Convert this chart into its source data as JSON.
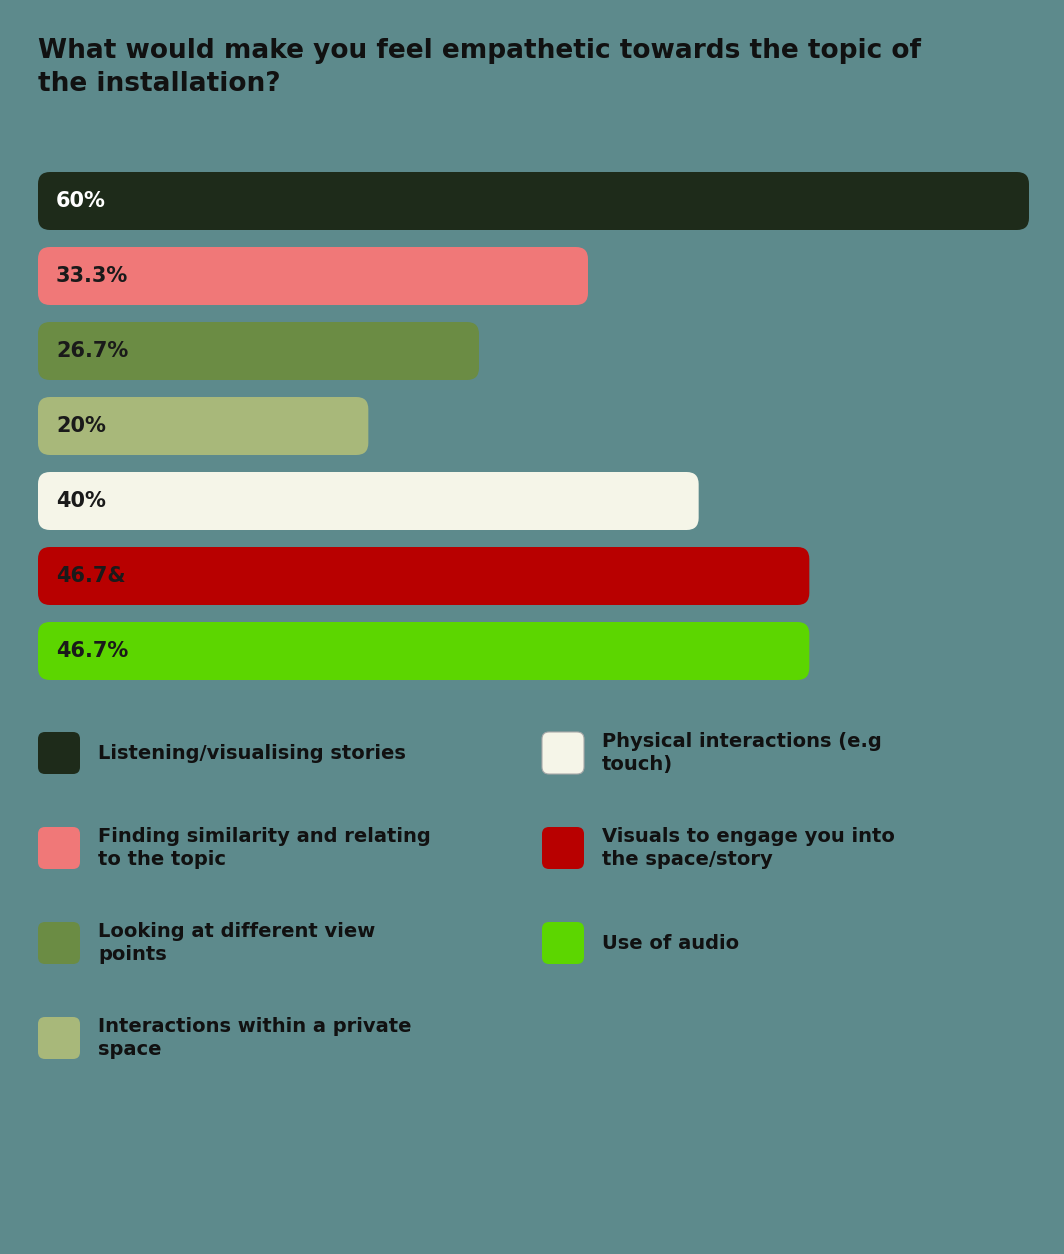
{
  "title": "What would make you feel empathetic towards the topic of\nthe installation?",
  "background_color": "#5d8a8c",
  "bars": [
    {
      "label": "60%",
      "value": 60,
      "color": "#1e2b1a",
      "text_color": "#ffffff"
    },
    {
      "label": "33.3%",
      "value": 33.3,
      "color": "#f07878",
      "text_color": "#1a1a1a"
    },
    {
      "label": "26.7%",
      "value": 26.7,
      "color": "#6b8c44",
      "text_color": "#1a1a1a"
    },
    {
      "label": "20%",
      "value": 20,
      "color": "#a8b87a",
      "text_color": "#1a1a1a"
    },
    {
      "label": "40%",
      "value": 40,
      "color": "#f5f5e8",
      "text_color": "#1a1a1a"
    },
    {
      "label": "46.7&",
      "value": 46.7,
      "color": "#b80000",
      "text_color": "#1a1a1a"
    },
    {
      "label": "46.7%",
      "value": 46.7,
      "color": "#5cd600",
      "text_color": "#1a1a1a"
    }
  ],
  "max_value": 60,
  "legend_items_left": [
    {
      "color": "#1e2b1a",
      "label": "Listening/visualising stories",
      "border": false
    },
    {
      "color": "#f07878",
      "label": "Finding similarity and relating\nto the topic",
      "border": false
    },
    {
      "color": "#6b8c44",
      "label": "Looking at different view\npoints",
      "border": false
    },
    {
      "color": "#a8b87a",
      "label": "Interactions within a private\nspace",
      "border": false
    }
  ],
  "legend_items_right": [
    {
      "color": "#f5f5e8",
      "label": "Physical interactions (e.g\ntouch)",
      "border": true
    },
    {
      "color": "#b80000",
      "label": "Visuals to engage you into\nthe space/story",
      "border": false
    },
    {
      "color": "#5cd600",
      "label": "Use of audio",
      "border": false
    }
  ],
  "fig_width": 10.64,
  "fig_height": 12.54,
  "dpi": 100
}
